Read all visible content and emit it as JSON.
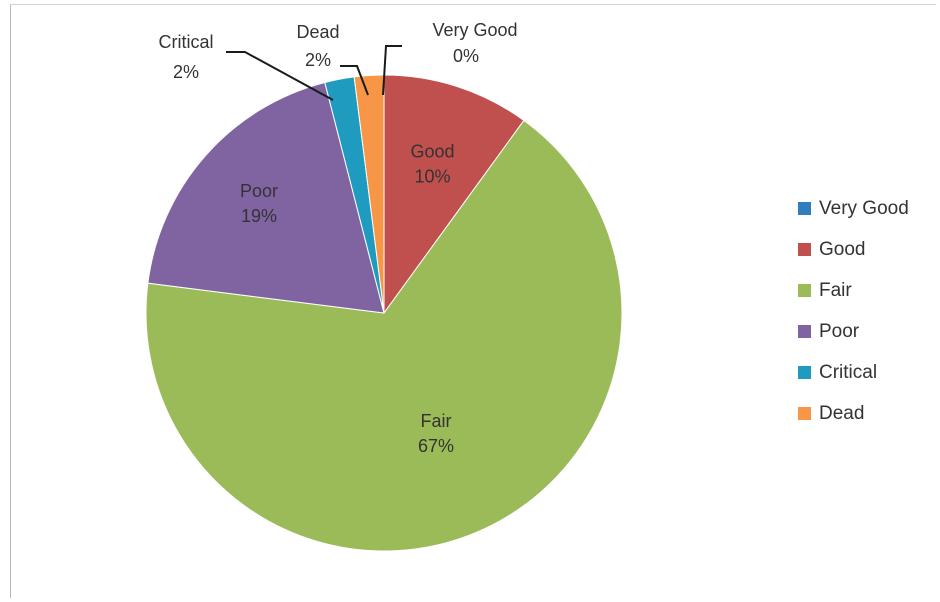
{
  "chart_data": {
    "type": "pie",
    "title": "",
    "legend_position": "right",
    "slices": [
      {
        "label": "Very Good",
        "value": 0,
        "percent_label": "0%",
        "color": "#2f7fbf"
      },
      {
        "label": "Good",
        "value": 10,
        "percent_label": "10%",
        "color": "#c0504d"
      },
      {
        "label": "Fair",
        "value": 67,
        "percent_label": "67%",
        "color": "#9bbb59"
      },
      {
        "label": "Poor",
        "value": 19,
        "percent_label": "19%",
        "color": "#8064a2"
      },
      {
        "label": "Critical",
        "value": 2,
        "percent_label": "2%",
        "color": "#1f9bbf"
      },
      {
        "label": "Dead",
        "value": 2,
        "percent_label": "2%",
        "color": "#f79646"
      }
    ]
  }
}
